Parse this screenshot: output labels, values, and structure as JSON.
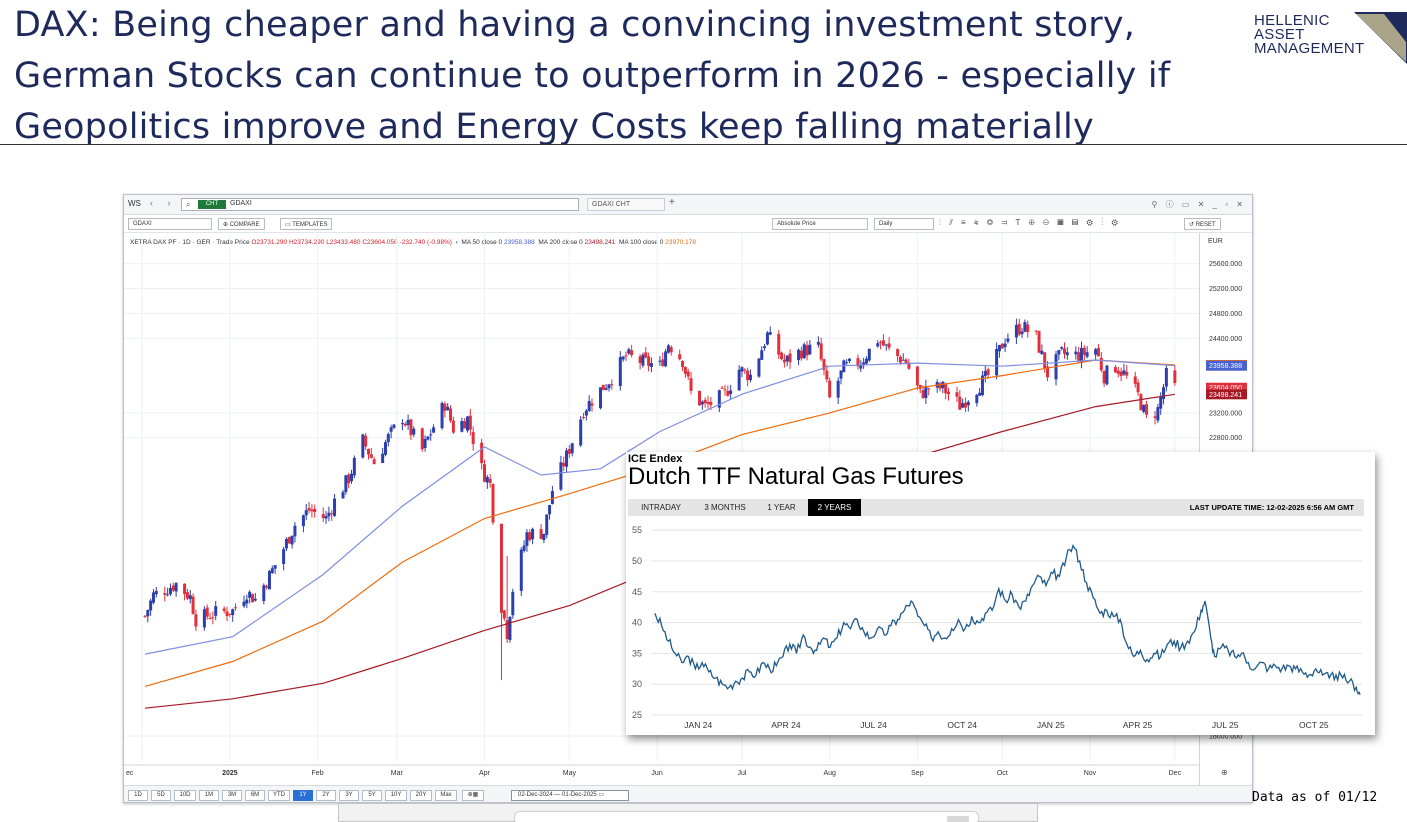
{
  "slide": {
    "title_lines": [
      "DAX: Being cheaper and having a convincing investment story,",
      "German Stocks can continue to outperform in 2026 - especially if",
      "Geopolitics improve and Energy Costs keep falling materially"
    ],
    "logo_lines": [
      "HELLENIC",
      "ASSET",
      "MANAGEMENT"
    ],
    "footnote": "Data as of 01/12"
  },
  "platform": {
    "workspace": "WS",
    "tab_badge": "CHT",
    "ticker": "GDAXI",
    "second_tab": "GDAXI CHT",
    "toolbar": {
      "ticker_field": "GDAXI",
      "compare": "COMPARE",
      "templates": "TEMPLATES",
      "price_mode": "Absolute Price",
      "interval": "Daily",
      "reset": "RESET"
    },
    "legend": {
      "instrument": "XETRA DAX PF · 1D · GER · Trade Price",
      "ohlc": "O23731.290  H23734.290  L23433.480  C23604.050  -232.740 (-0.98%)",
      "ma50_label": "MA 50 close 0",
      "ma50_value": "23958.388",
      "ma200_label": "MA 200 close 0",
      "ma200_value": "23498.241",
      "ma100_label": "MA 100 close 0",
      "ma100_value": "23970.178"
    },
    "currency": "EUR",
    "periods": [
      "1D",
      "5D",
      "10D",
      "1M",
      "3M",
      "6M",
      "YTD",
      "1Y",
      "2Y",
      "3Y",
      "5Y",
      "10Y",
      "20Y",
      "Max"
    ],
    "active_period": "1Y",
    "date_range": "02-Dec-2024 — 01-Dec-2025"
  },
  "colors": {
    "up": "#2b3fae",
    "down": "#e0303c",
    "ma50": "#7f8ee3",
    "ma100": "#ef6c0c",
    "ma200": "#a51a25",
    "ttf_line": "#1f5a8a",
    "title": "#1f2a5c"
  },
  "chart_data": [
    {
      "type": "candlestick",
      "series_name": "XETRA DAX PF",
      "y_tick_labels": [
        "25600.000",
        "25200.000",
        "24800.000",
        "24400.000",
        "23200.000",
        "22800.000",
        "18000.000"
      ],
      "ylim": [
        17600,
        25900
      ],
      "x_tick_labels": [
        "ec",
        "2025",
        "Feb",
        "Mar",
        "Apr",
        "May",
        "Jun",
        "Jul",
        "Aug",
        "Sep",
        "Oct",
        "Nov",
        "Dec"
      ],
      "price_tags": [
        {
          "label": "23970.178",
          "color": "#ef6c0c"
        },
        {
          "label": "23958.388",
          "color": "#4861d1"
        },
        {
          "label": "23604.050",
          "color": "#e0303c"
        },
        {
          "label": "23498.241",
          "color": "#a51a25"
        }
      ],
      "close_path": [
        [
          "2024-12-02",
          19930
        ],
        [
          "2024-12-05",
          20270
        ],
        [
          "2024-12-10",
          20380
        ],
        [
          "2024-12-13",
          20450
        ],
        [
          "2024-12-18",
          20240
        ],
        [
          "2024-12-20",
          19880
        ],
        [
          "2024-12-27",
          19980
        ],
        [
          "2025-01-02",
          20020
        ],
        [
          "2025-01-07",
          20320
        ],
        [
          "2025-01-10",
          20200
        ],
        [
          "2025-01-15",
          20580
        ],
        [
          "2025-01-20",
          21020
        ],
        [
          "2025-01-24",
          21400
        ],
        [
          "2025-01-29",
          21640
        ],
        [
          "2025-02-04",
          21500
        ],
        [
          "2025-02-07",
          21780
        ],
        [
          "2025-02-12",
          22150
        ],
        [
          "2025-02-17",
          22750
        ],
        [
          "2025-02-21",
          22400
        ],
        [
          "2025-02-26",
          22800
        ],
        [
          "2025-03-03",
          23130
        ],
        [
          "2025-03-06",
          22900
        ],
        [
          "2025-03-10",
          22600
        ],
        [
          "2025-03-14",
          22980
        ],
        [
          "2025-03-18",
          23350
        ],
        [
          "2025-03-21",
          22950
        ],
        [
          "2025-03-26",
          23110
        ],
        [
          "2025-03-31",
          22300
        ],
        [
          "2025-04-03",
          22050
        ],
        [
          "2025-04-07",
          20100
        ],
        [
          "2025-04-09",
          19670
        ],
        [
          "2025-04-11",
          20370
        ],
        [
          "2025-04-16",
          21250
        ],
        [
          "2025-04-22",
          21280
        ],
        [
          "2025-04-25",
          21960
        ],
        [
          "2025-04-30",
          22500
        ],
        [
          "2025-05-06",
          23250
        ],
        [
          "2025-05-12",
          23570
        ],
        [
          "2025-05-16",
          23770
        ],
        [
          "2025-05-21",
          24120
        ],
        [
          "2025-05-26",
          24030
        ],
        [
          "2025-06-02",
          23950
        ],
        [
          "2025-06-05",
          24320
        ],
        [
          "2025-06-10",
          24050
        ],
        [
          "2025-06-13",
          23520
        ],
        [
          "2025-06-18",
          23300
        ],
        [
          "2025-06-20",
          23350
        ],
        [
          "2025-06-25",
          23500
        ],
        [
          "2025-06-30",
          23900
        ],
        [
          "2025-07-04",
          23800
        ],
        [
          "2025-07-10",
          24450
        ],
        [
          "2025-07-16",
          24010
        ],
        [
          "2025-07-22",
          24200
        ],
        [
          "2025-07-28",
          24250
        ],
        [
          "2025-08-01",
          23420
        ],
        [
          "2025-08-06",
          23920
        ],
        [
          "2025-08-12",
          24020
        ],
        [
          "2025-08-18",
          24380
        ],
        [
          "2025-08-22",
          24200
        ],
        [
          "2025-08-28",
          24020
        ],
        [
          "2025-09-02",
          23500
        ],
        [
          "2025-09-05",
          23600
        ],
        [
          "2025-09-10",
          23600
        ],
        [
          "2025-09-16",
          23320
        ],
        [
          "2025-09-22",
          23600
        ],
        [
          "2025-09-26",
          23800
        ],
        [
          "2025-10-02",
          24400
        ],
        [
          "2025-10-08",
          24600
        ],
        [
          "2025-10-13",
          24400
        ],
        [
          "2025-10-17",
          23830
        ],
        [
          "2025-10-22",
          24150
        ],
        [
          "2025-10-28",
          24120
        ],
        [
          "2025-11-03",
          24230
        ],
        [
          "2025-11-06",
          23800
        ],
        [
          "2025-11-10",
          23950
        ],
        [
          "2025-11-13",
          23830
        ],
        [
          "2025-11-18",
          23480
        ],
        [
          "2025-11-21",
          23100
        ],
        [
          "2025-11-25",
          23250
        ],
        [
          "2025-11-28",
          23800
        ],
        [
          "2025-12-01",
          23604
        ]
      ],
      "ma50_path": [
        [
          "2024-12-02",
          19320
        ],
        [
          "2025-01-02",
          19600
        ],
        [
          "2025-02-03",
          20600
        ],
        [
          "2025-03-03",
          21700
        ],
        [
          "2025-04-01",
          22650
        ],
        [
          "2025-04-21",
          22200
        ],
        [
          "2025-05-12",
          22300
        ],
        [
          "2025-06-02",
          22900
        ],
        [
          "2025-07-01",
          23500
        ],
        [
          "2025-08-01",
          23950
        ],
        [
          "2025-09-01",
          24000
        ],
        [
          "2025-10-01",
          23950
        ],
        [
          "2025-11-03",
          24050
        ],
        [
          "2025-12-01",
          23958
        ]
      ],
      "ma100_path": [
        [
          "2024-12-02",
          18800
        ],
        [
          "2025-01-02",
          19200
        ],
        [
          "2025-02-03",
          19850
        ],
        [
          "2025-03-03",
          20800
        ],
        [
          "2025-04-01",
          21500
        ],
        [
          "2025-05-01",
          21900
        ],
        [
          "2025-06-02",
          22350
        ],
        [
          "2025-07-01",
          22850
        ],
        [
          "2025-08-01",
          23200
        ],
        [
          "2025-09-01",
          23600
        ],
        [
          "2025-10-01",
          23800
        ],
        [
          "2025-11-03",
          24050
        ],
        [
          "2025-12-01",
          23970
        ]
      ],
      "ma200_path": [
        [
          "2024-12-02",
          18450
        ],
        [
          "2025-01-02",
          18600
        ],
        [
          "2025-02-03",
          18850
        ],
        [
          "2025-03-03",
          19250
        ],
        [
          "2025-04-01",
          19700
        ],
        [
          "2025-05-01",
          20100
        ],
        [
          "2025-06-02",
          20700
        ],
        [
          "2025-07-01",
          21400
        ],
        [
          "2025-08-01",
          22050
        ],
        [
          "2025-09-01",
          22500
        ],
        [
          "2025-10-01",
          22900
        ],
        [
          "2025-11-03",
          23300
        ],
        [
          "2025-12-01",
          23498
        ]
      ]
    },
    {
      "type": "line",
      "source": "ICE Endex",
      "title": "Dutch TTF Natural Gas Futures",
      "tabs": [
        "INTRADAY",
        "3 MONTHS",
        "1 YEAR",
        "2 YEARS"
      ],
      "active_tab": "2 YEARS",
      "last_update": "LAST UPDATE TIME: 12-02-2025 6:56 AM GMT",
      "y_ticks": [
        25,
        30,
        35,
        40,
        45,
        50,
        55
      ],
      "ylim": [
        25,
        56
      ],
      "x_tick_labels": [
        "JAN 24",
        "APR 24",
        "JUL 24",
        "OCT 24",
        "JAN 25",
        "APR 25",
        "JUL 25",
        "OCT 25"
      ],
      "x_tick_dates": [
        "2024-01-15",
        "2024-04-15",
        "2024-07-15",
        "2024-10-15",
        "2025-01-15",
        "2025-04-15",
        "2025-07-15",
        "2025-10-15"
      ],
      "points": [
        [
          "2023-12-01",
          41.5
        ],
        [
          "2023-12-08",
          39.5
        ],
        [
          "2023-12-15",
          37.0
        ],
        [
          "2023-12-22",
          35.0
        ],
        [
          "2023-12-29",
          33.5
        ],
        [
          "2024-01-05",
          34.5
        ],
        [
          "2024-01-12",
          32.5
        ],
        [
          "2024-01-19",
          33.5
        ],
        [
          "2024-01-26",
          32.0
        ],
        [
          "2024-02-02",
          31.0
        ],
        [
          "2024-02-09",
          30.0
        ],
        [
          "2024-02-16",
          29.5
        ],
        [
          "2024-02-23",
          30.5
        ],
        [
          "2024-03-01",
          31.0
        ],
        [
          "2024-03-08",
          32.0
        ],
        [
          "2024-03-15",
          31.5
        ],
        [
          "2024-03-22",
          33.5
        ],
        [
          "2024-03-29",
          32.5
        ],
        [
          "2024-04-05",
          33.0
        ],
        [
          "2024-04-12",
          34.5
        ],
        [
          "2024-04-19",
          36.5
        ],
        [
          "2024-04-26",
          35.0
        ],
        [
          "2024-05-03",
          38.0
        ],
        [
          "2024-05-10",
          36.0
        ],
        [
          "2024-05-17",
          35.5
        ],
        [
          "2024-05-24",
          37.5
        ],
        [
          "2024-05-31",
          36.0
        ],
        [
          "2024-06-07",
          37.5
        ],
        [
          "2024-06-14",
          40.0
        ],
        [
          "2024-06-21",
          39.0
        ],
        [
          "2024-06-28",
          40.5
        ],
        [
          "2024-07-05",
          38.5
        ],
        [
          "2024-07-12",
          37.5
        ],
        [
          "2024-07-19",
          39.0
        ],
        [
          "2024-07-26",
          38.0
        ],
        [
          "2024-08-02",
          39.5
        ],
        [
          "2024-08-09",
          40.5
        ],
        [
          "2024-08-16",
          42.0
        ],
        [
          "2024-08-23",
          43.5
        ],
        [
          "2024-08-30",
          41.0
        ],
        [
          "2024-09-06",
          39.5
        ],
        [
          "2024-09-13",
          37.5
        ],
        [
          "2024-09-20",
          38.5
        ],
        [
          "2024-09-27",
          37.5
        ],
        [
          "2024-10-04",
          39.0
        ],
        [
          "2024-10-11",
          40.5
        ],
        [
          "2024-10-18",
          39.0
        ],
        [
          "2024-10-25",
          41.0
        ],
        [
          "2024-11-01",
          40.0
        ],
        [
          "2024-11-08",
          41.5
        ],
        [
          "2024-11-15",
          42.0
        ],
        [
          "2024-11-22",
          45.5
        ],
        [
          "2024-11-29",
          43.5
        ],
        [
          "2024-12-06",
          44.5
        ],
        [
          "2024-12-13",
          42.5
        ],
        [
          "2024-12-20",
          43.5
        ],
        [
          "2024-12-27",
          46.0
        ],
        [
          "2025-01-03",
          47.5
        ],
        [
          "2025-01-10",
          46.0
        ],
        [
          "2025-01-17",
          48.0
        ],
        [
          "2025-01-24",
          47.5
        ],
        [
          "2025-01-31",
          50.5
        ],
        [
          "2025-02-07",
          52.5
        ],
        [
          "2025-02-14",
          50.0
        ],
        [
          "2025-02-21",
          46.5
        ],
        [
          "2025-02-28",
          44.0
        ],
        [
          "2025-03-07",
          41.5
        ],
        [
          "2025-03-14",
          42.0
        ],
        [
          "2025-03-21",
          41.0
        ],
        [
          "2025-03-28",
          40.5
        ],
        [
          "2025-04-04",
          36.5
        ],
        [
          "2025-04-11",
          34.5
        ],
        [
          "2025-04-18",
          35.5
        ],
        [
          "2025-04-25",
          34.0
        ],
        [
          "2025-05-02",
          35.0
        ],
        [
          "2025-05-09",
          34.5
        ],
        [
          "2025-05-16",
          36.5
        ],
        [
          "2025-05-23",
          37.0
        ],
        [
          "2025-05-30",
          36.0
        ],
        [
          "2025-06-06",
          37.0
        ],
        [
          "2025-06-13",
          38.5
        ],
        [
          "2025-06-20",
          42.0
        ],
        [
          "2025-06-24",
          43.5
        ],
        [
          "2025-06-30",
          37.5
        ],
        [
          "2025-07-04",
          34.5
        ],
        [
          "2025-07-11",
          36.0
        ],
        [
          "2025-07-18",
          35.5
        ],
        [
          "2025-07-25",
          34.5
        ],
        [
          "2025-08-01",
          35.0
        ],
        [
          "2025-08-08",
          33.5
        ],
        [
          "2025-08-15",
          32.5
        ],
        [
          "2025-08-22",
          33.5
        ],
        [
          "2025-08-29",
          32.5
        ],
        [
          "2025-09-05",
          33.0
        ],
        [
          "2025-09-12",
          32.5
        ],
        [
          "2025-09-19",
          33.0
        ],
        [
          "2025-09-26",
          32.5
        ],
        [
          "2025-10-03",
          32.0
        ],
        [
          "2025-10-10",
          31.5
        ],
        [
          "2025-10-17",
          32.5
        ],
        [
          "2025-10-24",
          31.5
        ],
        [
          "2025-10-31",
          31.0
        ],
        [
          "2025-11-07",
          31.5
        ],
        [
          "2025-11-14",
          31.0
        ],
        [
          "2025-11-21",
          30.5
        ],
        [
          "2025-11-28",
          29.5
        ],
        [
          "2025-12-02",
          28.3
        ]
      ]
    }
  ]
}
